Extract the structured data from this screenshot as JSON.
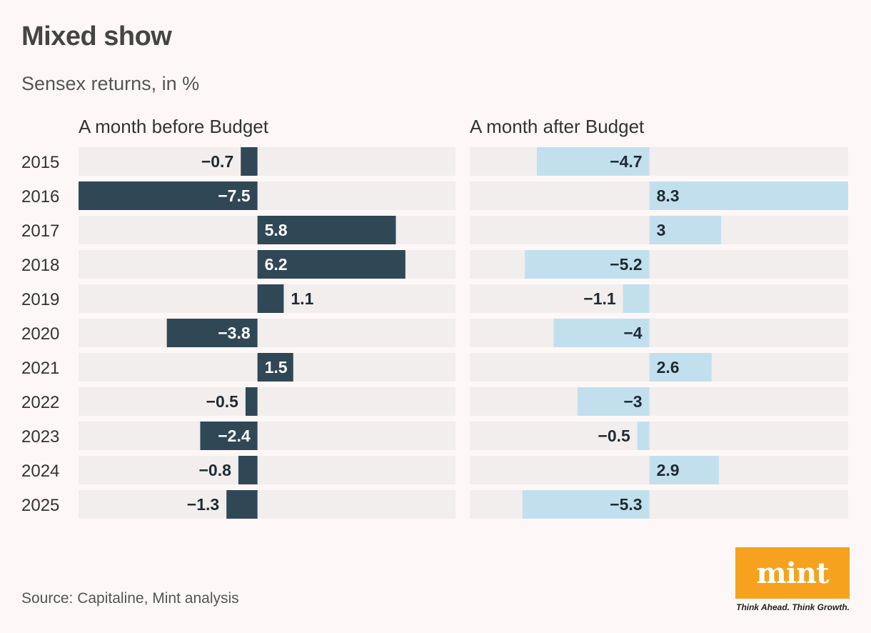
{
  "header": {
    "title": "Mixed show",
    "subtitle": "Sensex returns, in %"
  },
  "chart_data": {
    "type": "bar",
    "orientation": "horizontal",
    "categories": [
      "2015",
      "2016",
      "2017",
      "2018",
      "2019",
      "2020",
      "2021",
      "2022",
      "2023",
      "2024",
      "2025"
    ],
    "series": [
      {
        "name": "A month before Budget",
        "values": [
          -0.7,
          -7.5,
          5.8,
          6.2,
          1.1,
          -3.8,
          1.5,
          -0.5,
          -2.4,
          -0.8,
          -1.3
        ],
        "labels": [
          "−0.7",
          "−7.5",
          "5.8",
          "6.2",
          "1.1",
          "−3.8",
          "1.5",
          "−0.5",
          "−2.4",
          "−0.8",
          "−1.3"
        ],
        "color": "#304856",
        "label_color_inside": "#ffffff",
        "range": [
          -7.5,
          8.3
        ]
      },
      {
        "name": "A month after Budget",
        "values": [
          -4.7,
          8.3,
          3,
          -5.2,
          -1.1,
          -4,
          2.6,
          -3,
          -0.5,
          2.9,
          -5.3
        ],
        "labels": [
          "−4.7",
          "8.3",
          "3",
          "−5.2",
          "−1.1",
          "−4",
          "2.6",
          "−3",
          "−0.5",
          "2.9",
          "−5.3"
        ],
        "color": "#c2dfee",
        "label_color_inside": "#1f2b33",
        "range": [
          -7.5,
          8.3
        ]
      }
    ],
    "track_color": "#f2eeed"
  },
  "footer": {
    "source": "Source: Capitaline, Mint analysis",
    "logo_text": "mint",
    "tagline": "Think Ahead. Think Growth.",
    "logo_color": "#f6a21e"
  }
}
